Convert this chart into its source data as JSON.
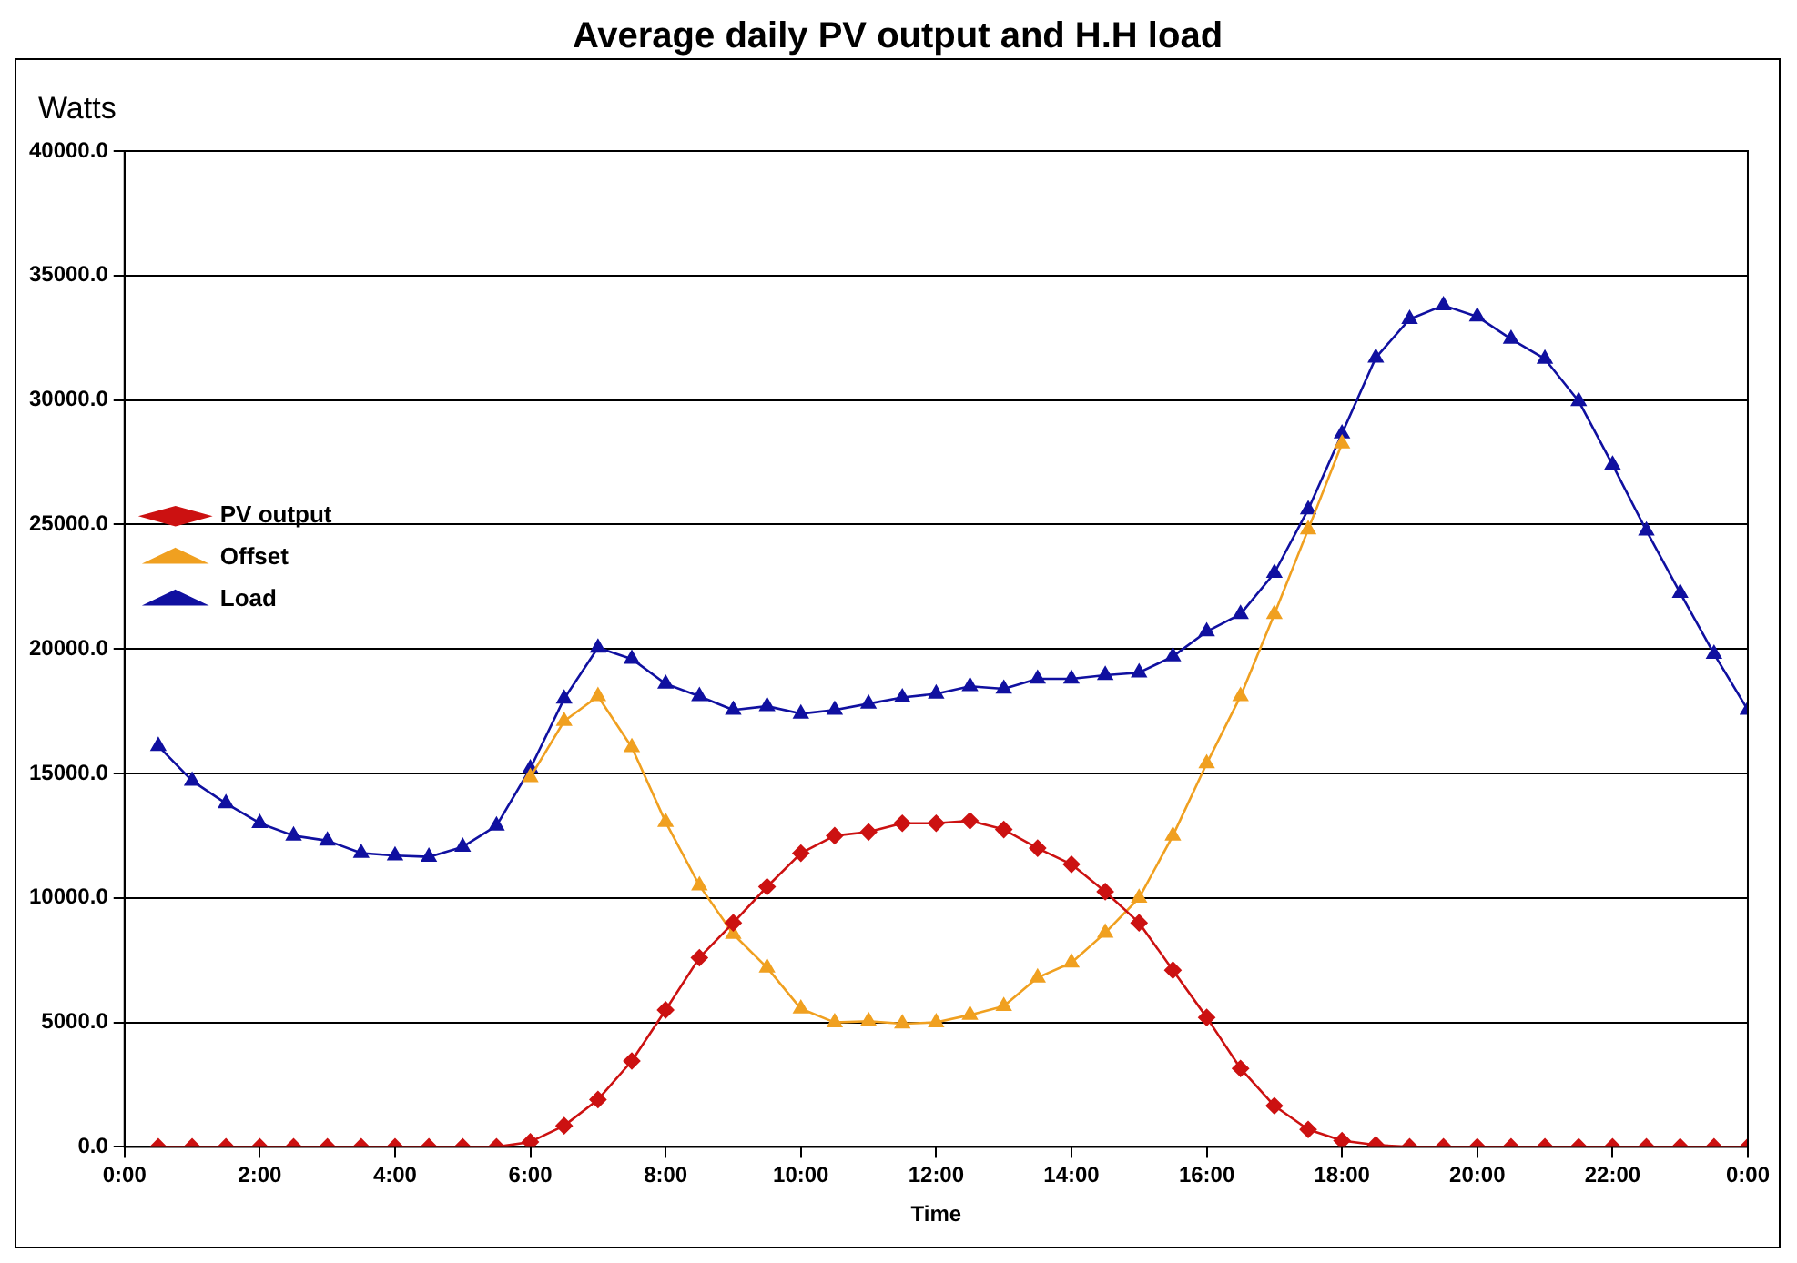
{
  "chart_data": {
    "type": "line",
    "title": "Average daily PV output and H.H load",
    "xlabel": "Time",
    "ylabel": "Watts",
    "x": [
      0.5,
      1,
      1.5,
      2,
      2.5,
      3,
      3.5,
      4,
      4.5,
      5,
      5.5,
      6,
      6.5,
      7,
      7.5,
      8,
      8.5,
      9,
      9.5,
      10,
      10.5,
      11,
      11.5,
      12,
      12.5,
      13,
      13.5,
      14,
      14.5,
      15,
      15.5,
      16,
      16.5,
      17,
      17.5,
      18,
      18.5,
      19,
      19.5,
      20,
      20.5,
      21,
      21.5,
      22,
      22.5,
      23,
      23.5,
      24
    ],
    "series": [
      {
        "name": "PV output",
        "color": "#cc1111",
        "marker": "diamond",
        "values": [
          0,
          0,
          0,
          0,
          0,
          0,
          0,
          0,
          0,
          0,
          0,
          200,
          850,
          1900,
          3450,
          5500,
          7600,
          9000,
          10450,
          11800,
          12500,
          12650,
          13000,
          13000,
          13100,
          12750,
          12000,
          11350,
          10250,
          9000,
          7100,
          5200,
          3150,
          1650,
          700,
          250,
          80,
          0,
          0,
          0,
          0,
          0,
          0,
          0,
          0,
          0,
          0,
          0
        ]
      },
      {
        "name": "Offset",
        "color": "#f0a020",
        "marker": "triangle",
        "values": [
          null,
          null,
          null,
          null,
          null,
          null,
          null,
          null,
          null,
          null,
          null,
          14850,
          17100,
          18100,
          16050,
          13050,
          10500,
          8550,
          7200,
          5550,
          5000,
          5050,
          4950,
          5000,
          5300,
          5650,
          6800,
          7400,
          8600,
          10000,
          12500,
          15400,
          18100,
          21400,
          24800,
          28250,
          null,
          null,
          null,
          null,
          null,
          null,
          null,
          null,
          null,
          null,
          null,
          null
        ]
      },
      {
        "name": "Load",
        "color": "#1010a0",
        "marker": "triangle",
        "values": [
          16100,
          14700,
          13800,
          13000,
          12500,
          12300,
          11800,
          11700,
          11650,
          12050,
          12900,
          15200,
          18000,
          20050,
          19600,
          18600,
          18100,
          17550,
          17700,
          17400,
          17550,
          17800,
          18050,
          18200,
          18500,
          18400,
          18800,
          18800,
          18950,
          19050,
          19700,
          20700,
          21400,
          23050,
          25600,
          28650,
          31700,
          33250,
          33800,
          33350,
          32450,
          31650,
          29950,
          27400,
          24750,
          22250,
          19800,
          17550
        ]
      }
    ],
    "xlim": [
      0,
      24
    ],
    "xticks": [
      {
        "value": 0,
        "label": "0:00"
      },
      {
        "value": 2,
        "label": "2:00"
      },
      {
        "value": 4,
        "label": "4:00"
      },
      {
        "value": 6,
        "label": "6:00"
      },
      {
        "value": 8,
        "label": "8:00"
      },
      {
        "value": 10,
        "label": "10:00"
      },
      {
        "value": 12,
        "label": "12:00"
      },
      {
        "value": 14,
        "label": "14:00"
      },
      {
        "value": 16,
        "label": "16:00"
      },
      {
        "value": 18,
        "label": "18:00"
      },
      {
        "value": 20,
        "label": "20:00"
      },
      {
        "value": 22,
        "label": "22:00"
      },
      {
        "value": 24,
        "label": "0:00"
      }
    ],
    "ylim": [
      0,
      40000
    ],
    "yticks": [
      {
        "value": 0,
        "label": "0.0"
      },
      {
        "value": 5000,
        "label": "5000.0"
      },
      {
        "value": 10000,
        "label": "10000.0"
      },
      {
        "value": 15000,
        "label": "15000.0"
      },
      {
        "value": 20000,
        "label": "20000.0"
      },
      {
        "value": 25000,
        "label": "25000.0"
      },
      {
        "value": 30000,
        "label": "30000.0"
      },
      {
        "value": 35000,
        "label": "35000.0"
      },
      {
        "value": 40000,
        "label": "40000.0"
      }
    ],
    "grid": "y",
    "legend": "top",
    "line_style": "solid"
  }
}
